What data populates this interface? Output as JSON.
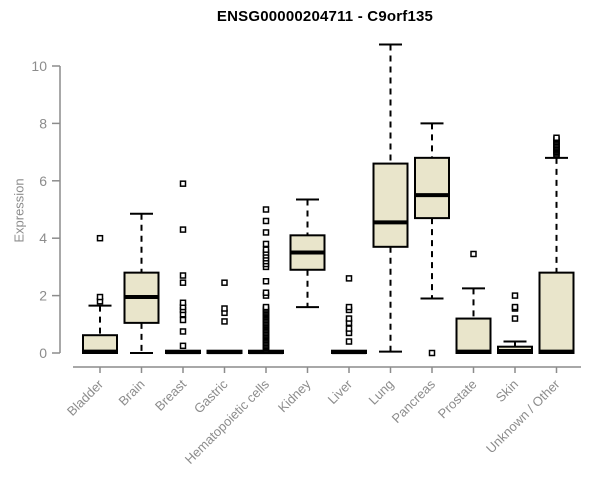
{
  "chart_data": {
    "type": "boxplot",
    "title": "ENSG00000204711 - C9orf135",
    "ylabel": "Expression",
    "xlabel": "",
    "ylim": [
      0,
      10.8
    ],
    "yticks": [
      0,
      2,
      4,
      6,
      8,
      10
    ],
    "grid": false,
    "legend": "none",
    "colors": {
      "box_fill": "#e9e5cb",
      "box_stroke": "#000000",
      "median": "#000000",
      "axis": "#8c8c8c",
      "outlier_fill": "#ffffff",
      "background": "#ffffff"
    },
    "categories": [
      "Bladder",
      "Brain",
      "Breast",
      "Gastric",
      "Hematopoietic cells",
      "Kidney",
      "Liver",
      "Lung",
      "Pancreas",
      "Prostate",
      "Skin",
      "Unknown / Other"
    ],
    "boxes": [
      {
        "category": "Bladder",
        "whisker_low": 0,
        "q1": 0,
        "median": 0.05,
        "q3": 0.62,
        "whisker_high": 1.65,
        "outliers": [
          1.8,
          1.95,
          4.0
        ]
      },
      {
        "category": "Brain",
        "whisker_low": 0,
        "q1": 1.05,
        "median": 1.95,
        "q3": 2.8,
        "whisker_high": 4.85,
        "outliers": []
      },
      {
        "category": "Breast",
        "whisker_low": 0,
        "q1": 0,
        "median": 0.03,
        "q3": 0.08,
        "whisker_high": 0.08,
        "outliers": [
          0.25,
          0.75,
          1.15,
          1.35,
          1.5,
          1.6,
          1.75,
          2.45,
          2.7,
          4.3,
          5.9
        ]
      },
      {
        "category": "Gastric",
        "whisker_low": 0,
        "q1": 0,
        "median": 0.03,
        "q3": 0.08,
        "whisker_high": 0.08,
        "outliers": [
          1.1,
          1.4,
          1.55,
          2.45
        ]
      },
      {
        "category": "Hematopoietic cells",
        "whisker_low": 0,
        "q1": 0,
        "median": 0.03,
        "q3": 0.08,
        "whisker_high": 0.08,
        "outliers": [
          0.1,
          0.15,
          0.2,
          0.25,
          0.3,
          0.35,
          0.4,
          0.45,
          0.5,
          0.55,
          0.6,
          0.65,
          0.7,
          0.75,
          0.8,
          0.85,
          0.9,
          0.95,
          1.0,
          1.05,
          1.1,
          1.15,
          1.2,
          1.25,
          1.3,
          1.35,
          1.4,
          1.45,
          1.5,
          1.55,
          1.6,
          2.0,
          2.1,
          2.5,
          3.0,
          3.1,
          3.2,
          3.3,
          3.4,
          3.5,
          3.6,
          3.8,
          4.2,
          4.6,
          5.0
        ]
      },
      {
        "category": "Kidney",
        "whisker_low": 1.6,
        "q1": 2.9,
        "median": 3.5,
        "q3": 4.1,
        "whisker_high": 5.35,
        "outliers": []
      },
      {
        "category": "Liver",
        "whisker_low": 0,
        "q1": 0,
        "median": 0.03,
        "q3": 0.08,
        "whisker_high": 0.08,
        "outliers": [
          0.4,
          0.7,
          0.85,
          1.05,
          1.2,
          1.5,
          1.6,
          2.6
        ]
      },
      {
        "category": "Lung",
        "whisker_low": 0.05,
        "q1": 3.7,
        "median": 4.55,
        "q3": 6.6,
        "whisker_high": 10.75,
        "outliers": []
      },
      {
        "category": "Pancreas",
        "whisker_low": 1.9,
        "q1": 4.7,
        "median": 5.5,
        "q3": 6.8,
        "whisker_high": 8.0,
        "outliers": [
          0.0
        ]
      },
      {
        "category": "Prostate",
        "whisker_low": 0,
        "q1": 0,
        "median": 0.05,
        "q3": 1.2,
        "whisker_high": 2.25,
        "outliers": [
          3.45
        ]
      },
      {
        "category": "Skin",
        "whisker_low": 0,
        "q1": 0,
        "median": 0.07,
        "q3": 0.22,
        "whisker_high": 0.4,
        "outliers": [
          1.2,
          1.55,
          1.6,
          2.0
        ]
      },
      {
        "category": "Unknown / Other",
        "whisker_low": 0,
        "q1": 0,
        "median": 0.05,
        "q3": 2.8,
        "whisker_high": 6.8,
        "outliers": [
          6.9,
          6.95,
          7.0,
          7.05,
          7.1,
          7.15,
          7.2,
          7.25,
          7.3,
          7.35,
          7.4,
          7.45,
          7.5
        ]
      }
    ]
  }
}
